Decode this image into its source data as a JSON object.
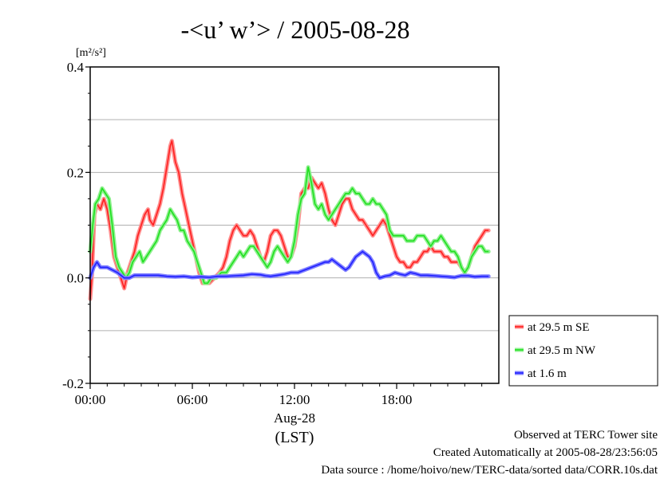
{
  "chart_data": {
    "type": "line",
    "title": "-<u’ w’> / 2005-08-28",
    "ylabel_unit": "[m²/s²]",
    "ylim": [
      -0.2,
      0.4
    ],
    "yticks": [
      {
        "value": -0.2,
        "label": "-0.2"
      },
      {
        "value": 0.0,
        "label": "0.0"
      },
      {
        "value": 0.2,
        "label": "0.2"
      },
      {
        "value": 0.4,
        "label": "0.4"
      }
    ],
    "gridlines_y": [
      -0.1,
      0.0,
      0.1,
      0.2,
      0.3
    ],
    "xlim": [
      0,
      24
    ],
    "xticks": [
      {
        "value": 0,
        "label": "00:00"
      },
      {
        "value": 6,
        "label": "06:00"
      },
      {
        "value": 12,
        "label": "12:00"
      },
      {
        "value": 18,
        "label": "18:00"
      }
    ],
    "xlabel_date": "Aug-28",
    "xlabel_tz": "(LST)",
    "legend_position": "right-lower-outside",
    "series": [
      {
        "name": "at 29.5 m SE",
        "color": "#ff2020",
        "halo": "#ff9090",
        "points": [
          [
            0,
            -0.04
          ],
          [
            0.1,
            0.0
          ],
          [
            0.25,
            0.12
          ],
          [
            0.4,
            0.14
          ],
          [
            0.6,
            0.13
          ],
          [
            0.8,
            0.15
          ],
          [
            1.0,
            0.13
          ],
          [
            1.2,
            0.09
          ],
          [
            1.4,
            0.04
          ],
          [
            1.6,
            0.02
          ],
          [
            1.8,
            0.0
          ],
          [
            2.0,
            -0.02
          ],
          [
            2.2,
            0.01
          ],
          [
            2.4,
            0.03
          ],
          [
            2.6,
            0.05
          ],
          [
            2.8,
            0.08
          ],
          [
            3.0,
            0.1
          ],
          [
            3.2,
            0.12
          ],
          [
            3.4,
            0.13
          ],
          [
            3.5,
            0.11
          ],
          [
            3.7,
            0.1
          ],
          [
            3.9,
            0.12
          ],
          [
            4.1,
            0.14
          ],
          [
            4.3,
            0.17
          ],
          [
            4.5,
            0.21
          ],
          [
            4.7,
            0.25
          ],
          [
            4.8,
            0.26
          ],
          [
            5.0,
            0.22
          ],
          [
            5.2,
            0.2
          ],
          [
            5.4,
            0.16
          ],
          [
            5.6,
            0.13
          ],
          [
            5.8,
            0.1
          ],
          [
            6.0,
            0.07
          ],
          [
            6.2,
            0.04
          ],
          [
            6.4,
            0.01
          ],
          [
            6.6,
            -0.01
          ],
          [
            6.8,
            -0.01
          ],
          [
            7.0,
            -0.01
          ],
          [
            7.3,
            0.0
          ],
          [
            7.6,
            0.01
          ],
          [
            7.8,
            0.02
          ],
          [
            8.0,
            0.04
          ],
          [
            8.2,
            0.07
          ],
          [
            8.4,
            0.09
          ],
          [
            8.6,
            0.1
          ],
          [
            8.8,
            0.09
          ],
          [
            9.0,
            0.08
          ],
          [
            9.2,
            0.08
          ],
          [
            9.4,
            0.09
          ],
          [
            9.6,
            0.08
          ],
          [
            9.8,
            0.06
          ],
          [
            10.0,
            0.04
          ],
          [
            10.2,
            0.03
          ],
          [
            10.4,
            0.05
          ],
          [
            10.6,
            0.08
          ],
          [
            10.8,
            0.09
          ],
          [
            11.0,
            0.09
          ],
          [
            11.2,
            0.08
          ],
          [
            11.4,
            0.06
          ],
          [
            11.6,
            0.04
          ],
          [
            11.8,
            0.04
          ],
          [
            12.0,
            0.06
          ],
          [
            12.2,
            0.1
          ],
          [
            12.4,
            0.16
          ],
          [
            12.6,
            0.17
          ],
          [
            12.8,
            0.17
          ],
          [
            13.0,
            0.19
          ],
          [
            13.2,
            0.18
          ],
          [
            13.4,
            0.17
          ],
          [
            13.6,
            0.18
          ],
          [
            13.8,
            0.16
          ],
          [
            14.0,
            0.13
          ],
          [
            14.2,
            0.11
          ],
          [
            14.4,
            0.1
          ],
          [
            14.6,
            0.12
          ],
          [
            14.8,
            0.14
          ],
          [
            15.0,
            0.15
          ],
          [
            15.2,
            0.15
          ],
          [
            15.4,
            0.13
          ],
          [
            15.6,
            0.12
          ],
          [
            15.8,
            0.11
          ],
          [
            16.0,
            0.11
          ],
          [
            16.2,
            0.1
          ],
          [
            16.4,
            0.09
          ],
          [
            16.6,
            0.08
          ],
          [
            16.8,
            0.09
          ],
          [
            17.0,
            0.1
          ],
          [
            17.2,
            0.11
          ],
          [
            17.4,
            0.1
          ],
          [
            17.6,
            0.08
          ],
          [
            17.8,
            0.06
          ],
          [
            18.0,
            0.04
          ],
          [
            18.2,
            0.03
          ],
          [
            18.4,
            0.03
          ],
          [
            18.6,
            0.02
          ],
          [
            18.8,
            0.02
          ],
          [
            19.0,
            0.03
          ],
          [
            19.2,
            0.03
          ],
          [
            19.4,
            0.04
          ],
          [
            19.6,
            0.05
          ],
          [
            19.8,
            0.05
          ],
          [
            20.0,
            0.06
          ],
          [
            20.2,
            0.05
          ],
          [
            20.4,
            0.05
          ],
          [
            20.6,
            0.05
          ],
          [
            20.8,
            0.04
          ],
          [
            21.0,
            0.04
          ],
          [
            21.2,
            0.03
          ],
          [
            21.4,
            0.03
          ],
          [
            21.6,
            0.03
          ],
          [
            21.8,
            0.02
          ],
          [
            22.0,
            0.01
          ],
          [
            22.2,
            0.02
          ],
          [
            22.4,
            0.04
          ],
          [
            22.6,
            0.06
          ],
          [
            22.8,
            0.07
          ],
          [
            23.0,
            0.08
          ],
          [
            23.2,
            0.09
          ],
          [
            23.4,
            0.09
          ]
        ]
      },
      {
        "name": "at 29.5 m NW",
        "color": "#20e020",
        "halo": "#90f090",
        "points": [
          [
            0,
            0.05
          ],
          [
            0.15,
            0.1
          ],
          [
            0.3,
            0.14
          ],
          [
            0.5,
            0.15
          ],
          [
            0.7,
            0.17
          ],
          [
            0.9,
            0.16
          ],
          [
            1.1,
            0.15
          ],
          [
            1.3,
            0.1
          ],
          [
            1.5,
            0.04
          ],
          [
            1.7,
            0.02
          ],
          [
            1.9,
            0.01
          ],
          [
            2.1,
            0.0
          ],
          [
            2.3,
            0.01
          ],
          [
            2.5,
            0.03
          ],
          [
            2.7,
            0.04
          ],
          [
            2.9,
            0.05
          ],
          [
            3.1,
            0.03
          ],
          [
            3.3,
            0.04
          ],
          [
            3.5,
            0.05
          ],
          [
            3.7,
            0.06
          ],
          [
            3.9,
            0.07
          ],
          [
            4.1,
            0.09
          ],
          [
            4.3,
            0.1
          ],
          [
            4.5,
            0.11
          ],
          [
            4.7,
            0.13
          ],
          [
            4.9,
            0.12
          ],
          [
            5.1,
            0.11
          ],
          [
            5.3,
            0.09
          ],
          [
            5.5,
            0.09
          ],
          [
            5.7,
            0.07
          ],
          [
            5.9,
            0.06
          ],
          [
            6.1,
            0.05
          ],
          [
            6.3,
            0.03
          ],
          [
            6.5,
            0.01
          ],
          [
            6.7,
            -0.01
          ],
          [
            6.9,
            -0.01
          ],
          [
            7.1,
            0.0
          ],
          [
            7.4,
            0.0
          ],
          [
            7.7,
            0.01
          ],
          [
            8.0,
            0.01
          ],
          [
            8.2,
            0.02
          ],
          [
            8.4,
            0.03
          ],
          [
            8.6,
            0.04
          ],
          [
            8.8,
            0.05
          ],
          [
            9.0,
            0.04
          ],
          [
            9.2,
            0.05
          ],
          [
            9.4,
            0.06
          ],
          [
            9.6,
            0.06
          ],
          [
            9.8,
            0.05
          ],
          [
            10.0,
            0.04
          ],
          [
            10.2,
            0.03
          ],
          [
            10.4,
            0.02
          ],
          [
            10.6,
            0.03
          ],
          [
            10.8,
            0.05
          ],
          [
            11.0,
            0.06
          ],
          [
            11.2,
            0.05
          ],
          [
            11.4,
            0.04
          ],
          [
            11.6,
            0.03
          ],
          [
            11.8,
            0.04
          ],
          [
            12.0,
            0.07
          ],
          [
            12.2,
            0.12
          ],
          [
            12.4,
            0.15
          ],
          [
            12.6,
            0.16
          ],
          [
            12.8,
            0.21
          ],
          [
            13.0,
            0.18
          ],
          [
            13.2,
            0.14
          ],
          [
            13.4,
            0.13
          ],
          [
            13.6,
            0.14
          ],
          [
            13.8,
            0.12
          ],
          [
            14.0,
            0.11
          ],
          [
            14.2,
            0.12
          ],
          [
            14.4,
            0.13
          ],
          [
            14.6,
            0.14
          ],
          [
            14.8,
            0.15
          ],
          [
            15.0,
            0.16
          ],
          [
            15.2,
            0.16
          ],
          [
            15.4,
            0.17
          ],
          [
            15.6,
            0.16
          ],
          [
            15.8,
            0.16
          ],
          [
            16.0,
            0.15
          ],
          [
            16.2,
            0.14
          ],
          [
            16.4,
            0.14
          ],
          [
            16.6,
            0.15
          ],
          [
            16.8,
            0.14
          ],
          [
            17.0,
            0.14
          ],
          [
            17.2,
            0.13
          ],
          [
            17.4,
            0.12
          ],
          [
            17.6,
            0.09
          ],
          [
            17.8,
            0.08
          ],
          [
            18.0,
            0.08
          ],
          [
            18.2,
            0.08
          ],
          [
            18.4,
            0.08
          ],
          [
            18.6,
            0.07
          ],
          [
            18.8,
            0.07
          ],
          [
            19.0,
            0.07
          ],
          [
            19.2,
            0.08
          ],
          [
            19.4,
            0.08
          ],
          [
            19.6,
            0.08
          ],
          [
            19.8,
            0.07
          ],
          [
            20.0,
            0.06
          ],
          [
            20.2,
            0.07
          ],
          [
            20.4,
            0.07
          ],
          [
            20.6,
            0.08
          ],
          [
            20.8,
            0.07
          ],
          [
            21.0,
            0.06
          ],
          [
            21.2,
            0.05
          ],
          [
            21.4,
            0.05
          ],
          [
            21.6,
            0.04
          ],
          [
            21.8,
            0.02
          ],
          [
            22.0,
            0.01
          ],
          [
            22.2,
            0.02
          ],
          [
            22.4,
            0.04
          ],
          [
            22.6,
            0.05
          ],
          [
            22.8,
            0.06
          ],
          [
            23.0,
            0.06
          ],
          [
            23.2,
            0.05
          ],
          [
            23.4,
            0.05
          ]
        ]
      },
      {
        "name": "at 1.6 m",
        "color": "#2020ff",
        "halo": "#8080ff",
        "points": [
          [
            0,
            0.0
          ],
          [
            0.2,
            0.02
          ],
          [
            0.4,
            0.03
          ],
          [
            0.6,
            0.02
          ],
          [
            0.8,
            0.02
          ],
          [
            1.0,
            0.02
          ],
          [
            1.3,
            0.015
          ],
          [
            1.6,
            0.01
          ],
          [
            2.0,
            0.0
          ],
          [
            2.3,
            0.0
          ],
          [
            2.6,
            0.005
          ],
          [
            3.0,
            0.005
          ],
          [
            3.5,
            0.005
          ],
          [
            4.0,
            0.005
          ],
          [
            4.5,
            0.003
          ],
          [
            5.0,
            0.002
          ],
          [
            5.5,
            0.003
          ],
          [
            6.0,
            0.001
          ],
          [
            6.5,
            0.002
          ],
          [
            7.0,
            0.001
          ],
          [
            7.5,
            0.003
          ],
          [
            8.0,
            0.003
          ],
          [
            8.5,
            0.004
          ],
          [
            9.0,
            0.005
          ],
          [
            9.5,
            0.007
          ],
          [
            10.0,
            0.006
          ],
          [
            10.3,
            0.004
          ],
          [
            10.6,
            0.003
          ],
          [
            11.0,
            0.005
          ],
          [
            11.4,
            0.007
          ],
          [
            11.8,
            0.01
          ],
          [
            12.2,
            0.01
          ],
          [
            12.6,
            0.015
          ],
          [
            13.0,
            0.02
          ],
          [
            13.4,
            0.025
          ],
          [
            13.8,
            0.03
          ],
          [
            14.0,
            0.03
          ],
          [
            14.2,
            0.035
          ],
          [
            14.4,
            0.03
          ],
          [
            14.6,
            0.025
          ],
          [
            14.8,
            0.02
          ],
          [
            15.0,
            0.015
          ],
          [
            15.2,
            0.02
          ],
          [
            15.4,
            0.03
          ],
          [
            15.6,
            0.04
          ],
          [
            15.8,
            0.045
          ],
          [
            16.0,
            0.05
          ],
          [
            16.2,
            0.045
          ],
          [
            16.4,
            0.04
          ],
          [
            16.6,
            0.03
          ],
          [
            16.8,
            0.01
          ],
          [
            17.0,
            0.0
          ],
          [
            17.3,
            0.003
          ],
          [
            17.6,
            0.005
          ],
          [
            17.9,
            0.01
          ],
          [
            18.2,
            0.007
          ],
          [
            18.5,
            0.005
          ],
          [
            18.8,
            0.01
          ],
          [
            19.1,
            0.008
          ],
          [
            19.4,
            0.005
          ],
          [
            19.8,
            0.005
          ],
          [
            20.2,
            0.004
          ],
          [
            20.6,
            0.003
          ],
          [
            21.0,
            0.002
          ],
          [
            21.4,
            0.001
          ],
          [
            21.8,
            0.004
          ],
          [
            22.2,
            0.004
          ],
          [
            22.6,
            0.002
          ],
          [
            23.0,
            0.003
          ],
          [
            23.4,
            0.003
          ]
        ]
      }
    ]
  },
  "footer": {
    "line1": "Observed at TERC Tower site",
    "line2": "Created Automatically at 2005-08-28/23:56:05",
    "line3": "Data source : /home/hoivo/new/TERC-data/sorted  data/CORR.10s.dat"
  }
}
